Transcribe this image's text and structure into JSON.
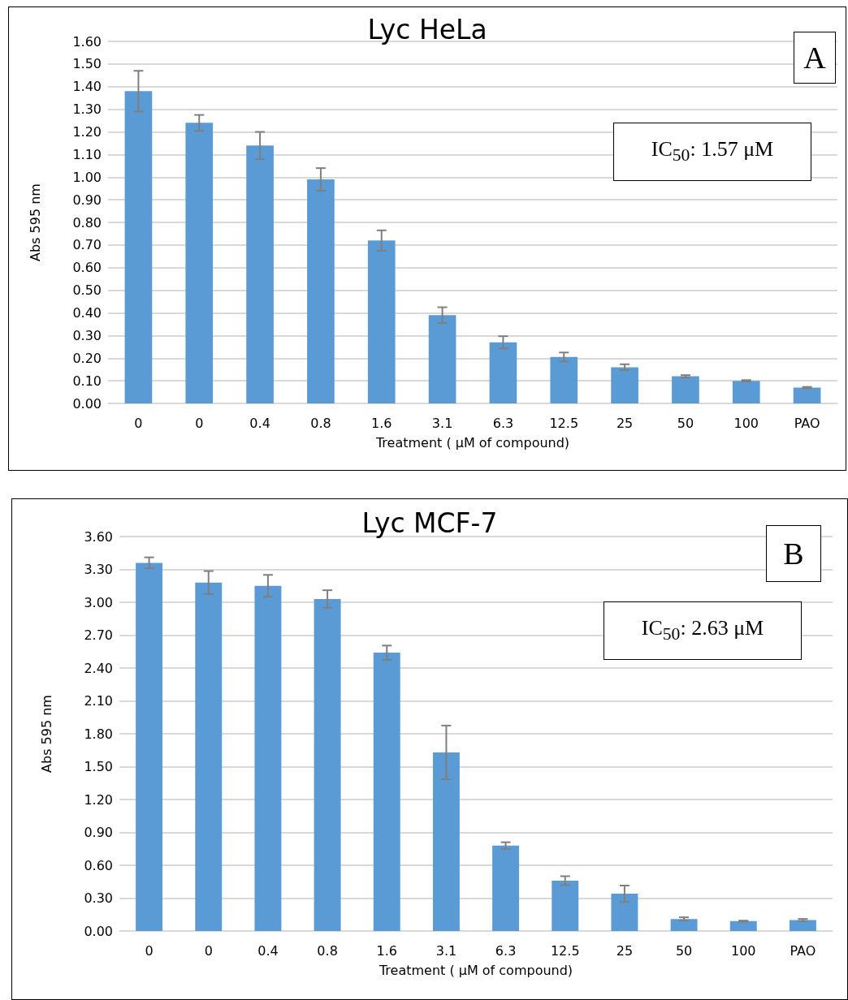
{
  "chart_data": [
    {
      "type": "bar",
      "title": "Lyc HeLa",
      "xlabel": "Treatment ( μM of compound)",
      "ylabel": "Abs 595 nm",
      "categories": [
        "0",
        "0",
        "0.4",
        "0.8",
        "1.6",
        "3.1",
        "6.3",
        "12.5",
        "25",
        "50",
        "100",
        "PAO"
      ],
      "values": [
        1.38,
        1.24,
        1.14,
        0.99,
        0.72,
        0.39,
        0.27,
        0.205,
        0.16,
        0.12,
        0.1,
        0.07
      ],
      "errors": [
        0.09,
        0.035,
        0.06,
        0.05,
        0.045,
        0.035,
        0.027,
        0.02,
        0.013,
        0.005,
        0.003,
        0.003
      ],
      "color": "#5b9bd5",
      "ylim": [
        0,
        1.6
      ],
      "yticks": [
        {
          "value": 0,
          "label": "0.00"
        },
        {
          "value": 0.1,
          "label": "0.10"
        },
        {
          "value": 0.2,
          "label": "0.20"
        },
        {
          "value": 0.3,
          "label": "0.30"
        },
        {
          "value": 0.4,
          "label": "0.40"
        },
        {
          "value": 0.5,
          "label": "0.50"
        },
        {
          "value": 0.6,
          "label": "0.60"
        },
        {
          "value": 0.7,
          "label": "0.70"
        },
        {
          "value": 0.8,
          "label": "0.80"
        },
        {
          "value": 0.9,
          "label": "0.90"
        },
        {
          "value": 1.0,
          "label": "1.00"
        },
        {
          "value": 1.1,
          "label": "1.10"
        },
        {
          "value": 1.2,
          "label": "1.20"
        },
        {
          "value": 1.3,
          "label": "1.30"
        },
        {
          "value": 1.4,
          "label": "1.40"
        },
        {
          "value": 1.5,
          "label": "1.50"
        },
        {
          "value": 1.6,
          "label": "1.60"
        }
      ],
      "grid": "y",
      "annotations": [
        "A",
        "IC$_{50}$: 1.57 μM"
      ]
    },
    {
      "type": "bar",
      "title": "Lyc MCF-7",
      "xlabel": "Treatment ( μM of compound)",
      "ylabel": "Abs 595 nm",
      "categories": [
        "0",
        "0",
        "0.4",
        "0.8",
        "1.6",
        "3.1",
        "6.3",
        "12.5",
        "25",
        "50",
        "100",
        "PAO"
      ],
      "values": [
        3.36,
        3.18,
        3.15,
        3.03,
        2.54,
        1.63,
        0.78,
        0.46,
        0.34,
        0.11,
        0.09,
        0.1
      ],
      "errors": [
        0.05,
        0.105,
        0.1,
        0.08,
        0.065,
        0.245,
        0.03,
        0.04,
        0.075,
        0.015,
        0.005,
        0.01
      ],
      "color": "#5b9bd5",
      "ylim": [
        0,
        3.6
      ],
      "yticks": [
        {
          "value": 0,
          "label": "0.00"
        },
        {
          "value": 0.3,
          "label": "0.30"
        },
        {
          "value": 0.6,
          "label": "0.60"
        },
        {
          "value": 0.9,
          "label": "0.90"
        },
        {
          "value": 1.2,
          "label": "1.20"
        },
        {
          "value": 1.5,
          "label": "1.50"
        },
        {
          "value": 1.8,
          "label": "1.80"
        },
        {
          "value": 2.1,
          "label": "2.10"
        },
        {
          "value": 2.4,
          "label": "2.40"
        },
        {
          "value": 2.7,
          "label": "2.70"
        },
        {
          "value": 3.0,
          "label": "3.00"
        },
        {
          "value": 3.3,
          "label": "3.30"
        },
        {
          "value": 3.6,
          "label": "3.60"
        }
      ],
      "grid": "y",
      "annotations": [
        "B",
        "IC$_{50}$: 2.63 μM"
      ]
    }
  ]
}
